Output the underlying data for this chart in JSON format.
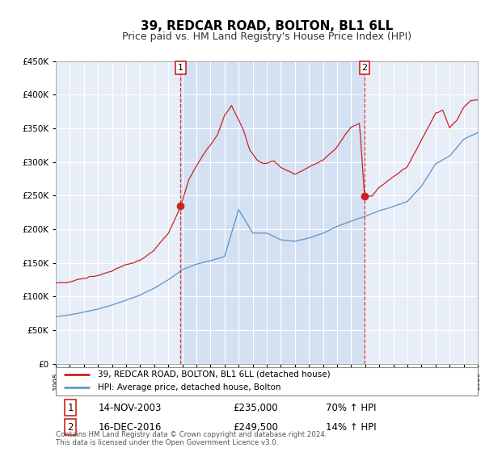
{
  "title": "39, REDCAR ROAD, BOLTON, BL1 6LL",
  "subtitle": "Price paid vs. HM Land Registry's House Price Index (HPI)",
  "title_fontsize": 11,
  "subtitle_fontsize": 9,
  "plot_bg_color": "#e8eef8",
  "grid_color": "#ffffff",
  "hpi_line_color": "#6699cc",
  "price_line_color": "#cc2222",
  "marker_color": "#cc2222",
  "shade_color": "#ccdcf0",
  "vline_color": "#cc2222",
  "ylim": [
    0,
    450000
  ],
  "legend_labels": [
    "39, REDCAR ROAD, BOLTON, BL1 6LL (detached house)",
    "HPI: Average price, detached house, Bolton"
  ],
  "sale1_date": 2003.87,
  "sale1_price": 235000,
  "sale2_date": 2016.96,
  "sale2_price": 249500,
  "sale1_text": "14-NOV-2003",
  "sale1_amount": "£235,000",
  "sale1_change": "70% ↑ HPI",
  "sale2_text": "16-DEC-2016",
  "sale2_amount": "£249,500",
  "sale2_change": "14% ↑ HPI",
  "footer": "Contains HM Land Registry data © Crown copyright and database right 2024.\nThis data is licensed under the Open Government Licence v3.0.",
  "xmin": 1995,
  "xmax": 2025,
  "hpi_pts_x": [
    1995.0,
    1996.0,
    1997.0,
    1998.0,
    1999.0,
    2000.0,
    2001.0,
    2002.0,
    2003.0,
    2004.0,
    2005.0,
    2006.0,
    2007.0,
    2008.0,
    2009.0,
    2010.0,
    2011.0,
    2012.0,
    2013.0,
    2014.0,
    2015.0,
    2016.0,
    2017.0,
    2018.0,
    2019.0,
    2020.0,
    2021.0,
    2022.0,
    2023.0,
    2024.0,
    2025.0
  ],
  "hpi_pts_y": [
    70000,
    73000,
    77000,
    82000,
    88000,
    95000,
    103000,
    113000,
    125000,
    140000,
    148000,
    153000,
    160000,
    230000,
    195000,
    195000,
    185000,
    183000,
    188000,
    195000,
    205000,
    213000,
    220000,
    228000,
    235000,
    242000,
    265000,
    298000,
    310000,
    335000,
    345000
  ],
  "pp_pts_x": [
    1995.0,
    1996.0,
    1997.0,
    1998.0,
    1999.0,
    2000.0,
    2001.0,
    2002.0,
    2003.0,
    2003.87,
    2004.5,
    2005.5,
    2006.5,
    2007.0,
    2007.5,
    2008.3,
    2008.8,
    2009.3,
    2009.8,
    2010.5,
    2011.0,
    2012.0,
    2013.0,
    2014.0,
    2015.0,
    2015.5,
    2016.0,
    2016.6,
    2016.96,
    2017.5,
    2018.0,
    2019.0,
    2020.0,
    2021.0,
    2022.0,
    2022.5,
    2023.0,
    2023.5,
    2024.0,
    2024.5
  ],
  "pp_pts_y": [
    120000,
    123000,
    128000,
    134000,
    140000,
    148000,
    155000,
    170000,
    195000,
    235000,
    275000,
    310000,
    340000,
    370000,
    385000,
    350000,
    320000,
    305000,
    300000,
    305000,
    295000,
    285000,
    295000,
    305000,
    325000,
    340000,
    355000,
    360000,
    249500,
    252000,
    265000,
    280000,
    295000,
    335000,
    375000,
    380000,
    355000,
    365000,
    385000,
    395000
  ]
}
